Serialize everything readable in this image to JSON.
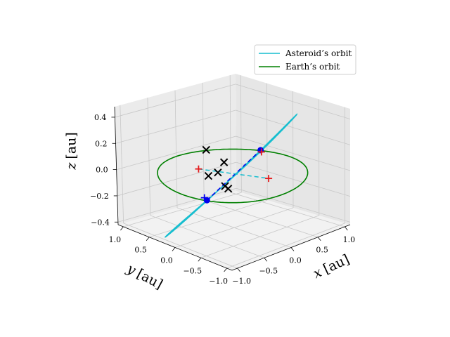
{
  "chart_data": {
    "type": "line3d",
    "title": "",
    "xlabel": "x",
    "ylabel": "y",
    "zlabel": "z",
    "unit": "[au]",
    "xlim": [
      -1.1,
      1.1
    ],
    "ylim": [
      -1.1,
      1.1
    ],
    "zlim": [
      -0.42,
      0.48
    ],
    "xticks": [
      -1.0,
      -0.5,
      0.0,
      0.5,
      1.0
    ],
    "yticks": [
      -1.0,
      -0.5,
      0.0,
      0.5,
      1.0
    ],
    "zticks": [
      -0.4,
      -0.2,
      0.0,
      0.2,
      0.4
    ],
    "xticklabels": [
      "−1.0",
      "−0.5",
      "0.0",
      "0.5",
      "1.0"
    ],
    "yticklabels": [
      "−1.0",
      "−0.5",
      "0.0",
      "0.5",
      "1.0"
    ],
    "zticklabels": [
      "−0.4",
      "−0.2",
      "0.0",
      "0.2",
      "0.4"
    ],
    "grid": true,
    "legend_position": "top-right",
    "series": [
      {
        "name": "Asteroid’s orbit",
        "color": "#17becf",
        "style": "solid",
        "orbit": {
          "a": 1.0,
          "e": 0.05,
          "inclination_deg": 30,
          "node_deg": 205,
          "peri_deg": 90
        }
      },
      {
        "name": "Earth’s orbit",
        "color": "#008000",
        "style": "solid",
        "orbit": {
          "a": 1.0,
          "e": 0.017,
          "inclination_deg": 0,
          "node_deg": 0,
          "peri_deg": 0
        }
      }
    ],
    "lines": [
      {
        "label": "line-of-nodes",
        "color": "#0000ee",
        "style": "dashed",
        "from": [
          -0.906,
          -0.423,
          0.0
        ],
        "to": [
          0.906,
          0.423,
          0.0
        ]
      },
      {
        "label": "apsis-line",
        "color": "#17becf",
        "style": "dashed",
        "from": [
          -0.211,
          0.453,
          0.0
        ],
        "to": [
          0.211,
          -0.453,
          0.0
        ]
      }
    ],
    "points": [
      {
        "label": "node-point",
        "marker": "circle",
        "color": "#0000ee",
        "xyz": [
          -0.906,
          -0.423,
          0.0
        ]
      },
      {
        "label": "node-point",
        "marker": "circle",
        "color": "#0000ee",
        "xyz": [
          0.906,
          0.423,
          0.0
        ]
      },
      {
        "label": "node-plus",
        "marker": "plus",
        "color": "#0000ee",
        "xyz": [
          -0.93,
          -0.4,
          0.02
        ]
      },
      {
        "label": "node-plus",
        "marker": "plus",
        "color": "#e41a1c",
        "xyz": [
          0.9,
          0.4,
          -0.01
        ]
      },
      {
        "label": "apsis-plus",
        "marker": "plus",
        "color": "#e41a1c",
        "xyz": [
          -0.211,
          0.453,
          0.0
        ]
      },
      {
        "label": "apsis-plus",
        "marker": "plus",
        "color": "#e41a1c",
        "xyz": [
          0.211,
          -0.453,
          0.0
        ]
      },
      {
        "label": "x-marker",
        "marker": "x",
        "color": "#000000",
        "xyz": [
          -0.55,
          -0.05,
          0.28
        ]
      },
      {
        "label": "x-marker",
        "marker": "x",
        "color": "#000000",
        "xyz": [
          -0.45,
          -0.3,
          0.02
        ]
      },
      {
        "label": "x-marker",
        "marker": "x",
        "color": "#000000",
        "xyz": [
          -0.42,
          -0.33,
          0.0
        ]
      },
      {
        "label": "x-marker",
        "marker": "x",
        "color": "#000000",
        "xyz": [
          0.4,
          0.6,
          -0.05
        ]
      },
      {
        "label": "x-marker",
        "marker": "x",
        "color": "#000000",
        "xyz": [
          0.38,
          0.7,
          -0.14
        ]
      },
      {
        "label": "x-marker",
        "marker": "x",
        "color": "#000000",
        "xyz": [
          0.3,
          0.8,
          -0.17
        ]
      }
    ]
  }
}
